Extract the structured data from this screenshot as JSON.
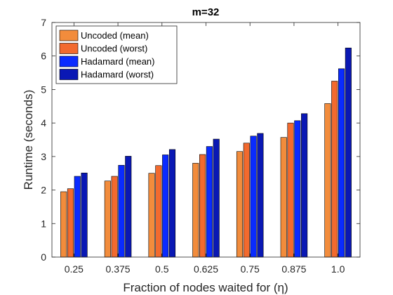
{
  "chart_data": {
    "type": "bar",
    "title": "m=32",
    "xlabel": "Fraction of nodes waited for (η)",
    "ylabel": "Runtime (seconds)",
    "ylim": [
      0,
      7
    ],
    "yticks": [
      "0",
      "1",
      "2",
      "3",
      "4",
      "5",
      "6",
      "7"
    ],
    "categories": [
      "0.25",
      "0.375",
      "0.5",
      "0.625",
      "0.75",
      "0.875",
      "1.0"
    ],
    "legend_position": "top-left",
    "grid": false,
    "series": [
      {
        "name": "Uncoded (mean)",
        "color": "#F28C3C",
        "values": [
          1.95,
          2.27,
          2.5,
          2.8,
          3.15,
          3.57,
          4.58
        ]
      },
      {
        "name": "Uncoded (worst)",
        "color": "#F26A2E",
        "values": [
          2.04,
          2.41,
          2.73,
          3.06,
          3.4,
          4.0,
          5.25
        ]
      },
      {
        "name": "Hadamard (mean)",
        "color": "#0A2BFF",
        "values": [
          2.41,
          2.74,
          3.05,
          3.3,
          3.61,
          4.07,
          5.62
        ]
      },
      {
        "name": "Hadamard (worst)",
        "color": "#0A18B4",
        "values": [
          2.51,
          3.01,
          3.21,
          3.52,
          3.69,
          4.28,
          6.24
        ]
      }
    ]
  }
}
